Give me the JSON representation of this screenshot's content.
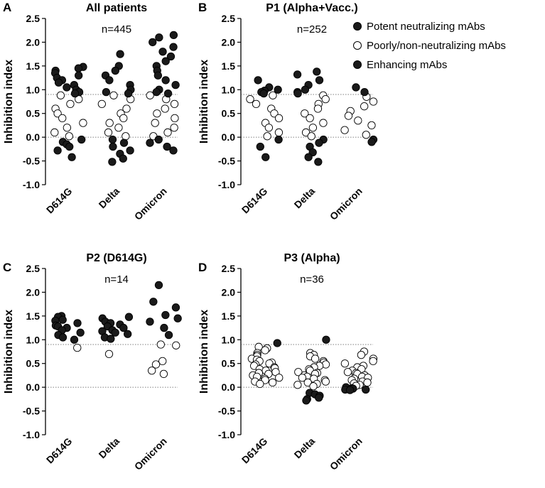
{
  "legend": {
    "placement": "right",
    "items": [
      {
        "label": "Potent neutralizing mAbs",
        "marker": "filled",
        "color": "#1a1a1a"
      },
      {
        "label": "Poorly/non-neutralizing mAbs",
        "marker": "open",
        "color": "#ffffff"
      },
      {
        "label": "Enhancing mAbs",
        "marker": "filled",
        "color": "#1a1a1a"
      }
    ]
  },
  "chart_data": [
    {
      "panel": "A",
      "type": "scatter",
      "title": "All patients",
      "n_label": "n=445",
      "ylabel": "Inhibition index",
      "categories": [
        "D614G",
        "Delta",
        "Omicron"
      ],
      "ylim": [
        -1.0,
        2.5
      ],
      "yticks": [
        "-1.0",
        "-0.5",
        "0.0",
        "0.5",
        "1.0",
        "1.5",
        "2.0",
        "2.5"
      ],
      "reference_lines": [
        0.9,
        0.0
      ],
      "groups": [
        {
          "category": "D614G",
          "potent": [
            1.48,
            1.45,
            1.4,
            1.35,
            1.3,
            1.25,
            1.2,
            1.15,
            1.1,
            1.05,
            1.0,
            0.95,
            0.92
          ],
          "poor": [
            0.88,
            0.8,
            0.7,
            0.6,
            0.5,
            0.4,
            0.3,
            0.2,
            0.1,
            0.02
          ],
          "enhancing": [
            -0.05,
            -0.1,
            -0.15,
            -0.2,
            -0.28,
            -0.42
          ]
        },
        {
          "category": "Delta",
          "potent": [
            1.75,
            1.5,
            1.4,
            1.3,
            1.2,
            1.1,
            1.0,
            0.95,
            0.92
          ],
          "poor": [
            0.88,
            0.8,
            0.7,
            0.6,
            0.5,
            0.4,
            0.3,
            0.2,
            0.1,
            0.02
          ],
          "enhancing": [
            -0.05,
            -0.12,
            -0.2,
            -0.28,
            -0.35,
            -0.45,
            -0.52
          ]
        },
        {
          "category": "Omicron",
          "potent": [
            2.15,
            2.1,
            2.0,
            1.9,
            1.8,
            1.7,
            1.6,
            1.5,
            1.4,
            1.3,
            1.2,
            1.1,
            1.0,
            0.95,
            0.92
          ],
          "poor": [
            0.88,
            0.8,
            0.7,
            0.6,
            0.5,
            0.4,
            0.3,
            0.2,
            0.1,
            0.02
          ],
          "enhancing": [
            -0.05,
            -0.12,
            -0.2,
            -0.28
          ]
        }
      ]
    },
    {
      "panel": "B",
      "type": "scatter",
      "title": "P1 (Alpha+Vacc.)",
      "n_label": "n=252",
      "ylabel": "Inhibition index",
      "categories": [
        "D614G",
        "Delta",
        "Omicron"
      ],
      "ylim": [
        -1.0,
        2.5
      ],
      "yticks": [
        "-1.0",
        "-0.5",
        "0.0",
        "0.5",
        "1.0",
        "1.5",
        "2.0",
        "2.5"
      ],
      "reference_lines": [
        0.9,
        0.0
      ],
      "groups": [
        {
          "category": "D614G",
          "potent": [
            1.2,
            1.05,
            1.0,
            0.98,
            0.95,
            0.92
          ],
          "poor": [
            0.88,
            0.8,
            0.7,
            0.6,
            0.5,
            0.4,
            0.3,
            0.2,
            0.1,
            0.02
          ],
          "enhancing": [
            -0.05,
            -0.2,
            -0.42
          ]
        },
        {
          "category": "Delta",
          "potent": [
            1.38,
            1.32,
            1.2,
            1.1,
            1.0,
            0.95,
            0.92
          ],
          "poor": [
            0.88,
            0.8,
            0.7,
            0.6,
            0.5,
            0.4,
            0.3,
            0.2,
            0.1,
            0.02
          ],
          "enhancing": [
            -0.05,
            -0.12,
            -0.2,
            -0.32,
            -0.42,
            -0.52
          ]
        },
        {
          "category": "Omicron",
          "potent": [
            1.05,
            0.95
          ],
          "poor": [
            0.85,
            0.75,
            0.65,
            0.55,
            0.45,
            0.35,
            0.25,
            0.15,
            0.05
          ],
          "enhancing": [
            -0.05,
            -0.1
          ]
        }
      ]
    },
    {
      "panel": "C",
      "type": "scatter",
      "title": "P2 (D614G)",
      "n_label": "n=14",
      "ylabel": "Inhibition index",
      "categories": [
        "D614G",
        "Delta",
        "Omicron"
      ],
      "ylim": [
        -1.0,
        2.5
      ],
      "yticks": [
        "-1.0",
        "-0.5",
        "0.0",
        "0.5",
        "1.0",
        "1.5",
        "2.0",
        "2.5"
      ],
      "reference_lines": [
        0.9,
        0.0
      ],
      "groups": [
        {
          "category": "D614G",
          "potent": [
            1.5,
            1.48,
            1.42,
            1.4,
            1.35,
            1.3,
            1.28,
            1.25,
            1.2,
            1.15,
            1.1,
            1.05,
            1.0
          ],
          "poor": [
            0.83
          ],
          "enhancing": []
        },
        {
          "category": "Delta",
          "potent": [
            1.48,
            1.45,
            1.38,
            1.35,
            1.32,
            1.28,
            1.25,
            1.2,
            1.18,
            1.15,
            1.12,
            1.05,
            1.02
          ],
          "poor": [
            0.7
          ],
          "enhancing": []
        },
        {
          "category": "Omicron",
          "potent": [
            2.15,
            1.8,
            1.68,
            1.52,
            1.45,
            1.38,
            1.25,
            1.1
          ],
          "poor": [
            0.9,
            0.88,
            0.55,
            0.48,
            0.35,
            0.28
          ],
          "enhancing": []
        }
      ]
    },
    {
      "panel": "D",
      "type": "scatter",
      "title": "P3 (Alpha)",
      "n_label": "n=36",
      "ylabel": "Inhibition index",
      "categories": [
        "D614G",
        "Delta",
        "Omicron"
      ],
      "ylim": [
        -1.0,
        2.5
      ],
      "yticks": [
        "-1.0",
        "-0.5",
        "0.0",
        "0.5",
        "1.0",
        "1.5",
        "2.0",
        "2.5"
      ],
      "reference_lines": [
        0.9,
        0.0
      ],
      "groups": [
        {
          "category": "D614G",
          "potent": [
            0.93
          ],
          "poor": [
            0.85,
            0.82,
            0.78,
            0.72,
            0.68,
            0.65,
            0.6,
            0.58,
            0.55,
            0.52,
            0.5,
            0.48,
            0.45,
            0.42,
            0.4,
            0.38,
            0.35,
            0.32,
            0.3,
            0.28,
            0.25,
            0.22,
            0.2,
            0.18,
            0.15,
            0.12,
            0.1,
            0.07
          ],
          "enhancing": []
        },
        {
          "category": "Delta",
          "potent": [
            1.0
          ],
          "poor": [
            0.72,
            0.68,
            0.65,
            0.6,
            0.55,
            0.52,
            0.48,
            0.45,
            0.42,
            0.38,
            0.35,
            0.32,
            0.3,
            0.28,
            0.25,
            0.22,
            0.2,
            0.18,
            0.15,
            0.12,
            0.1,
            0.07,
            0.05,
            0.02
          ],
          "enhancing": [
            -0.12,
            -0.15,
            -0.18,
            -0.22,
            -0.25,
            -0.28
          ]
        },
        {
          "category": "Omicron",
          "potent": [],
          "poor": [
            0.75,
            0.68,
            0.6,
            0.55,
            0.5,
            0.45,
            0.42,
            0.38,
            0.35,
            0.32,
            0.3,
            0.28,
            0.25,
            0.22,
            0.2,
            0.18,
            0.15,
            0.12,
            0.1,
            0.08,
            0.05,
            0.03
          ],
          "enhancing": [
            0.0,
            -0.02,
            -0.03,
            -0.05,
            -0.05,
            -0.06
          ]
        }
      ]
    }
  ]
}
